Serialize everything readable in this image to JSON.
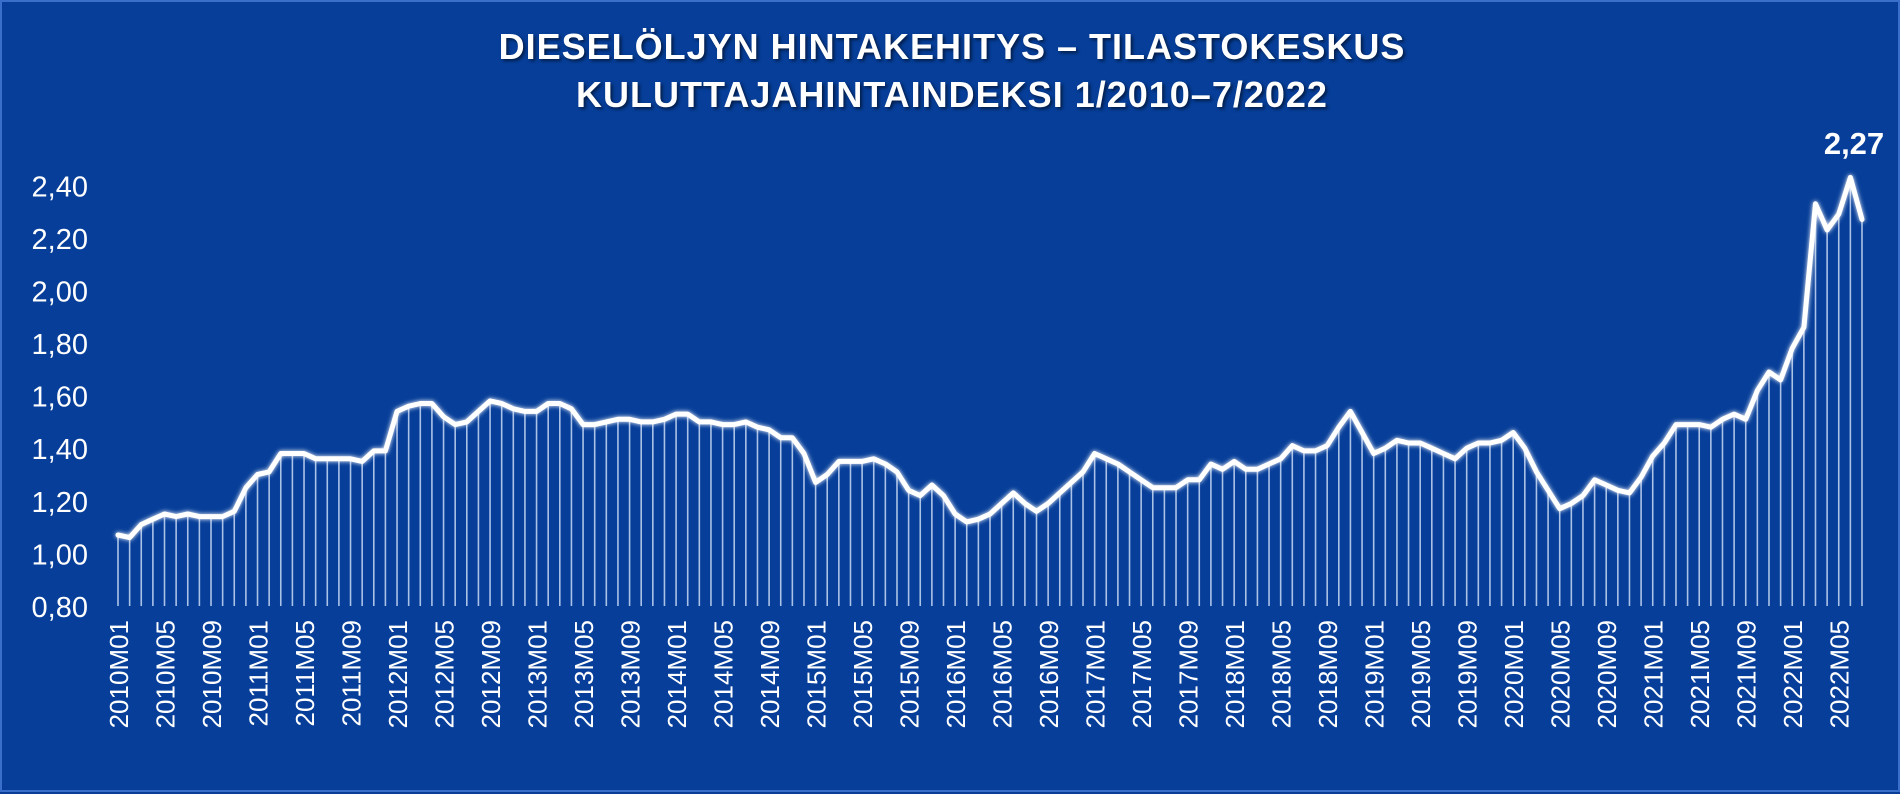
{
  "chart_data": {
    "type": "area",
    "title": "DIESELÖLJYN HINTAKEHITYS – TILASTOKESKUS",
    "subtitle": "KULUTTAJAHINTAINDEKSI 1/2010–7/2022",
    "xlabel": "",
    "ylabel": "",
    "ylim": [
      0.8,
      2.5
    ],
    "yticks": [
      "0,80",
      "1,00",
      "1,20",
      "1,40",
      "1,60",
      "1,80",
      "2,00",
      "2,20",
      "2,40"
    ],
    "ytick_values": [
      0.8,
      1.0,
      1.2,
      1.4,
      1.6,
      1.8,
      2.0,
      2.2,
      2.4
    ],
    "grid": false,
    "legend": "none",
    "x_start": "2010M01",
    "x_tick_labels": [
      "2010M01",
      "2010M05",
      "2010M09",
      "2011M01",
      "2011M05",
      "2011M09",
      "2012M01",
      "2012M05",
      "2012M09",
      "2013M01",
      "2013M05",
      "2013M09",
      "2014M01",
      "2014M05",
      "2014M09",
      "2015M01",
      "2015M05",
      "2015M09",
      "2016M01",
      "2016M05",
      "2016M09",
      "2017M01",
      "2017M05",
      "2017M09",
      "2018M01",
      "2018M05",
      "2018M09",
      "2019M01",
      "2019M05",
      "2019M09",
      "2020M01",
      "2020M05",
      "2020M09",
      "2021M01",
      "2021M05",
      "2021M09",
      "2022M01",
      "2022M05"
    ],
    "values": [
      1.07,
      1.06,
      1.11,
      1.13,
      1.15,
      1.14,
      1.15,
      1.14,
      1.14,
      1.14,
      1.16,
      1.25,
      1.3,
      1.31,
      1.38,
      1.38,
      1.38,
      1.36,
      1.36,
      1.36,
      1.36,
      1.35,
      1.39,
      1.39,
      1.54,
      1.56,
      1.57,
      1.57,
      1.52,
      1.49,
      1.5,
      1.54,
      1.58,
      1.57,
      1.55,
      1.54,
      1.54,
      1.57,
      1.57,
      1.55,
      1.49,
      1.49,
      1.5,
      1.51,
      1.51,
      1.5,
      1.5,
      1.51,
      1.53,
      1.53,
      1.5,
      1.5,
      1.49,
      1.49,
      1.5,
      1.48,
      1.47,
      1.44,
      1.44,
      1.38,
      1.27,
      1.3,
      1.35,
      1.35,
      1.35,
      1.36,
      1.34,
      1.31,
      1.24,
      1.22,
      1.26,
      1.22,
      1.15,
      1.12,
      1.13,
      1.15,
      1.19,
      1.23,
      1.19,
      1.16,
      1.19,
      1.23,
      1.27,
      1.31,
      1.38,
      1.36,
      1.34,
      1.31,
      1.28,
      1.25,
      1.25,
      1.25,
      1.28,
      1.28,
      1.34,
      1.32,
      1.35,
      1.32,
      1.32,
      1.34,
      1.36,
      1.41,
      1.39,
      1.39,
      1.41,
      1.48,
      1.54,
      1.46,
      1.38,
      1.4,
      1.43,
      1.42,
      1.42,
      1.4,
      1.38,
      1.36,
      1.4,
      1.42,
      1.42,
      1.43,
      1.46,
      1.4,
      1.31,
      1.24,
      1.17,
      1.19,
      1.22,
      1.28,
      1.26,
      1.24,
      1.23,
      1.29,
      1.37,
      1.42,
      1.49,
      1.49,
      1.49,
      1.48,
      1.51,
      1.53,
      1.51,
      1.62,
      1.69,
      1.66,
      1.78,
      1.86,
      2.33,
      2.23,
      2.29,
      2.43,
      2.27
    ],
    "annotations": [
      {
        "label": "2,27"
      }
    ]
  }
}
